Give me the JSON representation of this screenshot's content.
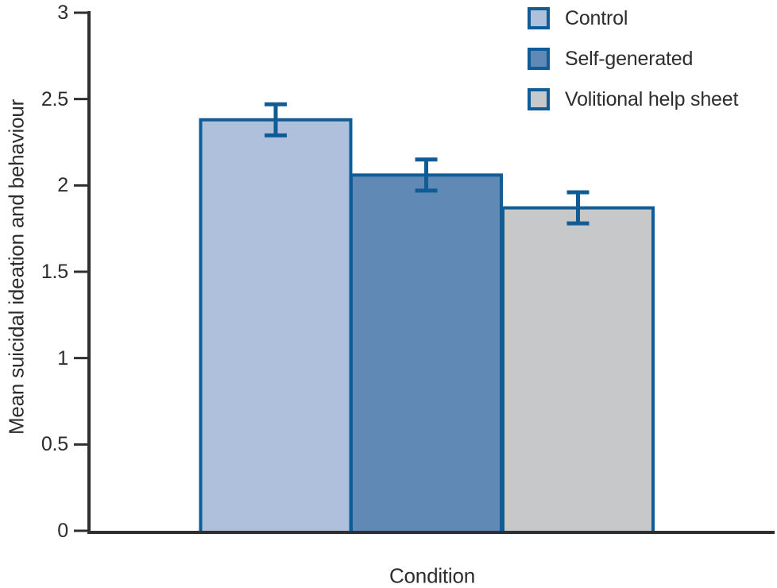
{
  "chart_data": {
    "type": "bar",
    "title": "",
    "categories": [
      "Control",
      "Self-generated",
      "Volitional help sheet"
    ],
    "values": [
      2.38,
      2.06,
      1.87
    ],
    "error_bars": [
      0.09,
      0.09,
      0.09
    ],
    "xlabel": "Condition",
    "ylabel": "Mean suicidal ideation and behaviour",
    "ylim": [
      0,
      3
    ],
    "yticks": [
      0,
      0.5,
      1,
      1.5,
      2,
      2.5,
      3
    ],
    "grid": false,
    "legend_position": "top-right",
    "legend": [
      {
        "label": "Control",
        "color": "#aec0dc"
      },
      {
        "label": "Self-generated",
        "color": "#6189b6"
      },
      {
        "label": "Volitional help sheet",
        "color": "#c7c8ca"
      }
    ],
    "bar_fill_colors": [
      "#aec0dc",
      "#6189b6",
      "#c7c8ca"
    ],
    "bar_border_color": "#0f5c96",
    "error_bar_color": "#0f5c96",
    "axis_color": "#2f2f2f",
    "text_color": "#2d2d2d"
  }
}
